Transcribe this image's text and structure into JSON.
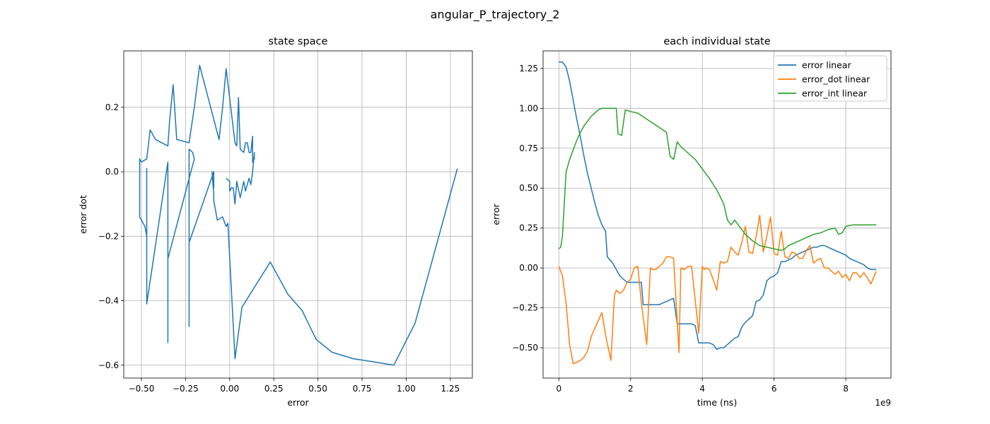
{
  "figure": {
    "suptitle": "angular_P_trajectory_2"
  },
  "chart_data": [
    {
      "type": "line",
      "title": "state space",
      "xlabel": "error",
      "ylabel": "error dot",
      "xlim": [
        -0.6,
        1.375
      ],
      "ylim": [
        -0.64,
        0.375
      ],
      "xticks": [
        -0.5,
        -0.25,
        0.0,
        0.25,
        0.5,
        0.75,
        1.0,
        1.25
      ],
      "xtick_labels": [
        "−0.50",
        "−0.25",
        "0.00",
        "0.25",
        "0.50",
        "0.75",
        "1.00",
        "1.25"
      ],
      "yticks": [
        -0.6,
        -0.4,
        -0.2,
        0.0,
        0.2
      ],
      "ytick_labels": [
        "−0.6",
        "−0.4",
        "−0.2",
        "0.0",
        "0.2"
      ],
      "grid": true,
      "series": [
        {
          "color": "#1f77b4",
          "x": [
            1.29,
            1.05,
            0.93,
            0.82,
            0.7,
            0.58,
            0.49,
            0.41,
            0.33,
            0.23,
            0.07,
            0.03,
            -0.01,
            -0.02,
            -0.04,
            -0.07,
            -0.09,
            -0.09,
            -0.1,
            -0.09,
            -0.09,
            -0.09,
            -0.23,
            -0.23,
            -0.23,
            -0.23,
            -0.23,
            -0.23,
            -0.23,
            -0.21,
            -0.2,
            -0.35,
            -0.35,
            -0.35,
            -0.35,
            -0.35,
            -0.47,
            -0.47,
            -0.47,
            -0.47,
            -0.48,
            -0.51,
            -0.51,
            -0.51,
            -0.5,
            -0.47,
            -0.45,
            -0.42,
            -0.35,
            -0.34,
            -0.32,
            -0.3,
            -0.23,
            -0.2,
            -0.17,
            -0.06,
            -0.04,
            -0.02,
            0.03,
            0.04,
            0.05,
            0.06,
            0.08,
            0.09,
            0.1,
            0.11,
            0.12,
            0.13,
            0.13,
            0.14,
            0.14,
            0.13,
            0.12,
            0.11,
            0.09,
            0.08,
            0.06,
            0.04,
            0.03,
            0.02,
            0.01,
            0.0,
            0.0,
            -0.02
          ],
          "y": [
            0.01,
            -0.47,
            -0.6,
            -0.59,
            -0.58,
            -0.56,
            -0.52,
            -0.43,
            -0.38,
            -0.28,
            -0.42,
            -0.58,
            -0.16,
            -0.17,
            -0.14,
            -0.15,
            -0.09,
            -0.07,
            0.0,
            -0.05,
            0.0,
            0.0,
            -0.22,
            0.0,
            0.0,
            -0.48,
            -0.01,
            0.01,
            0.07,
            0.06,
            0.04,
            -0.27,
            0.03,
            0.03,
            -0.53,
            0.03,
            -0.41,
            0.01,
            0.01,
            -0.2,
            -0.17,
            -0.14,
            -0.07,
            0.04,
            0.03,
            0.04,
            0.13,
            0.1,
            0.08,
            0.16,
            0.27,
            0.1,
            0.09,
            0.2,
            0.33,
            0.1,
            0.2,
            0.32,
            0.09,
            0.08,
            0.23,
            0.07,
            0.06,
            0.09,
            0.09,
            0.06,
            0.06,
            0.11,
            0.03,
            0.04,
            0.06,
            0.0,
            -0.04,
            -0.02,
            -0.06,
            -0.03,
            -0.08,
            -0.03,
            -0.1,
            -0.05,
            -0.05,
            -0.06,
            -0.03,
            -0.02
          ]
        }
      ]
    },
    {
      "type": "line",
      "title": "each individual state",
      "xlabel": "time (ns)",
      "ylabel": "error",
      "xlim": [
        -0.44,
        9.26
      ],
      "ylim": [
        -0.69,
        1.36
      ],
      "xticks": [
        0,
        2,
        4,
        6,
        8
      ],
      "xtick_labels": [
        "0",
        "2",
        "4",
        "6",
        "8"
      ],
      "x_offset_label": "1e9",
      "yticks": [
        -0.5,
        -0.25,
        0.0,
        0.25,
        0.5,
        0.75,
        1.0,
        1.25
      ],
      "ytick_labels": [
        "−0.50",
        "−0.25",
        "0.00",
        "0.25",
        "0.50",
        "0.75",
        "1.00",
        "1.25"
      ],
      "grid": true,
      "legend_position": "top-right",
      "series": [
        {
          "name": "error linear",
          "color": "#1f77b4",
          "x": [
            0,
            0.1,
            0.2,
            0.3,
            0.4,
            0.5,
            0.6,
            0.7,
            0.8,
            0.9,
            1.0,
            1.1,
            1.2,
            1.3,
            1.35,
            1.5,
            1.6,
            1.7,
            1.8,
            1.9,
            2.0,
            2.1,
            2.2,
            2.3,
            2.35,
            2.5,
            2.6,
            2.7,
            2.8,
            2.9,
            3.0,
            3.1,
            3.2,
            3.3,
            3.4,
            3.5,
            3.6,
            3.7,
            3.8,
            3.9,
            4.0,
            4.1,
            4.2,
            4.3,
            4.4,
            4.5,
            4.6,
            4.7,
            4.8,
            4.9,
            5.0,
            5.1,
            5.2,
            5.3,
            5.4,
            5.5,
            5.6,
            5.7,
            5.8,
            5.9,
            6.0,
            6.1,
            6.2,
            6.3,
            6.4,
            6.5,
            6.6,
            6.7,
            6.8,
            6.9,
            7.0,
            7.1,
            7.2,
            7.3,
            7.4,
            7.5,
            7.6,
            7.7,
            7.8,
            7.9,
            8.0,
            8.1,
            8.2,
            8.3,
            8.4,
            8.5,
            8.6,
            8.7,
            8.85
          ],
          "y": [
            1.29,
            1.29,
            1.26,
            1.17,
            1.05,
            0.93,
            0.82,
            0.7,
            0.59,
            0.5,
            0.41,
            0.33,
            0.27,
            0.23,
            0.07,
            0.03,
            -0.01,
            -0.05,
            -0.07,
            -0.09,
            -0.09,
            -0.09,
            -0.09,
            -0.09,
            -0.23,
            -0.23,
            -0.23,
            -0.23,
            -0.23,
            -0.22,
            -0.21,
            -0.2,
            -0.19,
            -0.35,
            -0.35,
            -0.35,
            -0.35,
            -0.35,
            -0.36,
            -0.47,
            -0.47,
            -0.47,
            -0.47,
            -0.48,
            -0.51,
            -0.5,
            -0.5,
            -0.48,
            -0.46,
            -0.44,
            -0.43,
            -0.37,
            -0.34,
            -0.32,
            -0.3,
            -0.21,
            -0.2,
            -0.17,
            -0.08,
            -0.06,
            -0.05,
            -0.03,
            0.04,
            0.04,
            0.05,
            0.06,
            0.08,
            0.09,
            0.1,
            0.11,
            0.12,
            0.13,
            0.13,
            0.14,
            0.14,
            0.13,
            0.12,
            0.11,
            0.1,
            0.09,
            0.08,
            0.06,
            0.05,
            0.04,
            0.03,
            0.02,
            0.0,
            -0.01,
            -0.01
          ]
        },
        {
          "name": "error_dot linear",
          "color": "#ff7f0e",
          "x": [
            0,
            0.1,
            0.2,
            0.3,
            0.4,
            0.5,
            0.6,
            0.7,
            0.8,
            0.9,
            1.0,
            1.1,
            1.2,
            1.3,
            1.45,
            1.55,
            1.6,
            1.7,
            1.8,
            1.9,
            2.0,
            2.1,
            2.2,
            2.3,
            2.45,
            2.55,
            2.6,
            2.7,
            2.8,
            2.9,
            3.0,
            3.1,
            3.2,
            3.35,
            3.4,
            3.5,
            3.6,
            3.7,
            3.8,
            3.9,
            4.0,
            4.05,
            4.1,
            4.2,
            4.3,
            4.4,
            4.5,
            4.6,
            4.7,
            4.8,
            4.9,
            5.0,
            5.1,
            5.2,
            5.3,
            5.4,
            5.5,
            5.6,
            5.7,
            5.8,
            5.9,
            6.0,
            6.1,
            6.2,
            6.3,
            6.4,
            6.5,
            6.6,
            6.7,
            6.8,
            6.9,
            7.0,
            7.1,
            7.2,
            7.3,
            7.4,
            7.5,
            7.6,
            7.7,
            7.8,
            7.9,
            8.0,
            8.1,
            8.2,
            8.3,
            8.4,
            8.5,
            8.6,
            8.7,
            8.85
          ],
          "y": [
            0.01,
            -0.05,
            -0.22,
            -0.48,
            -0.6,
            -0.59,
            -0.58,
            -0.56,
            -0.52,
            -0.43,
            -0.38,
            -0.33,
            -0.28,
            -0.42,
            -0.58,
            -0.17,
            -0.14,
            -0.16,
            -0.14,
            -0.09,
            -0.07,
            0.0,
            0.01,
            -0.22,
            -0.48,
            0.0,
            -0.01,
            -0.01,
            0.01,
            0.03,
            0.07,
            0.07,
            0.06,
            -0.53,
            0.0,
            -0.01,
            0.01,
            0.01,
            -0.2,
            -0.41,
            0.01,
            -0.01,
            0.0,
            -0.01,
            -0.07,
            -0.14,
            0.04,
            0.03,
            0.04,
            0.13,
            0.1,
            0.08,
            0.16,
            0.26,
            0.1,
            0.09,
            0.2,
            0.33,
            0.1,
            0.2,
            0.32,
            0.09,
            0.08,
            0.23,
            0.07,
            0.06,
            0.1,
            0.09,
            0.06,
            0.06,
            0.11,
            0.14,
            0.03,
            0.05,
            0.06,
            0.0,
            0.0,
            -0.02,
            -0.04,
            -0.02,
            -0.06,
            -0.04,
            -0.08,
            -0.03,
            -0.03,
            -0.06,
            -0.03,
            -0.06,
            -0.1,
            -0.02
          ]
        },
        {
          "name": "error_int linear",
          "color": "#2ca02c",
          "x": [
            0,
            0.05,
            0.1,
            0.2,
            0.3,
            0.4,
            0.5,
            0.6,
            0.7,
            0.8,
            0.9,
            1.0,
            1.1,
            1.2,
            1.3,
            1.4,
            1.5,
            1.6,
            1.65,
            1.75,
            1.85,
            2.0,
            2.2,
            2.4,
            2.6,
            2.8,
            3.0,
            3.1,
            3.2,
            3.3,
            3.4,
            3.6,
            3.8,
            4.0,
            4.2,
            4.4,
            4.6,
            4.7,
            4.8,
            4.9,
            5.0,
            5.2,
            5.4,
            5.6,
            5.8,
            6.0,
            6.2,
            6.3,
            6.4,
            6.5,
            6.7,
            6.9,
            7.1,
            7.3,
            7.5,
            7.7,
            7.8,
            7.9,
            8.0,
            8.2,
            8.4,
            8.6,
            8.85
          ],
          "y": [
            0.12,
            0.13,
            0.2,
            0.6,
            0.68,
            0.74,
            0.8,
            0.85,
            0.89,
            0.92,
            0.95,
            0.97,
            0.99,
            1.0,
            1.0,
            1.0,
            1.0,
            1.0,
            0.84,
            0.83,
            0.99,
            0.98,
            0.97,
            0.94,
            0.91,
            0.88,
            0.85,
            0.7,
            0.68,
            0.79,
            0.76,
            0.72,
            0.68,
            0.62,
            0.56,
            0.49,
            0.4,
            0.3,
            0.27,
            0.3,
            0.27,
            0.21,
            0.17,
            0.14,
            0.13,
            0.12,
            0.11,
            0.12,
            0.14,
            0.15,
            0.17,
            0.19,
            0.21,
            0.22,
            0.24,
            0.25,
            0.21,
            0.22,
            0.26,
            0.27,
            0.27,
            0.27,
            0.27
          ]
        }
      ]
    }
  ]
}
